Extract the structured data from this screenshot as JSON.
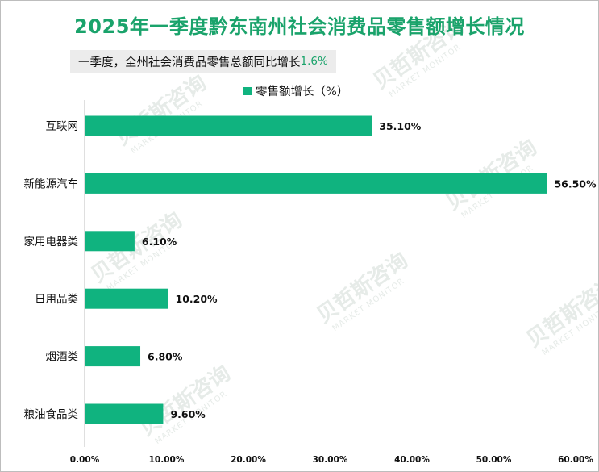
{
  "title": "2025年一季度黔东南州社会消费品零售额增长情况",
  "note": {
    "text": "一季度，全州社会消费品零售总额同比增长",
    "value": "1.6%"
  },
  "watermark": {
    "brand": "贝哲斯咨询",
    "sub": "MARKET MONITOR"
  },
  "colors": {
    "bar": "#10b37f",
    "title": "#1aa36b"
  },
  "chart_data": {
    "type": "bar",
    "orientation": "horizontal",
    "categories": [
      "互联网",
      "新能源汽车",
      "家用电器类",
      "日用品类",
      "烟酒类",
      "粮油食品类"
    ],
    "series": [
      {
        "name": "零售额增长（%）",
        "values": [
          35.1,
          56.5,
          6.1,
          10.2,
          6.8,
          9.6
        ]
      }
    ],
    "data_labels": [
      "35.10%",
      "56.50%",
      "6.10%",
      "10.20%",
      "6.80%",
      "9.60%"
    ],
    "x_ticks": [
      "0.00%",
      "10.00%",
      "20.00%",
      "30.00%",
      "40.00%",
      "50.00%",
      "60.00%"
    ],
    "xlim": [
      0,
      60
    ],
    "grid": false,
    "legend_position": "top"
  }
}
